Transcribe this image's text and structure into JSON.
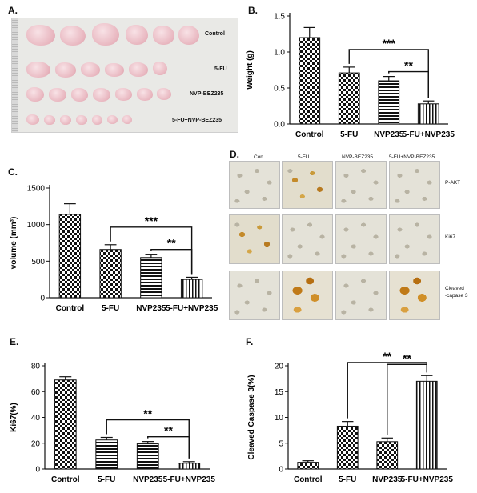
{
  "panel_letters": {
    "a": "A.",
    "b": "B.",
    "c": "C.",
    "d": "D.",
    "e": "E.",
    "f": "F."
  },
  "photo_labels": [
    "Control",
    "5-FU",
    "NVP-BEZ235",
    "5-FU+NVP-BEZ235"
  ],
  "histology": {
    "columns": [
      "Con",
      "5-FU",
      "NVP-BEZ235",
      "5-FU+NVP-BEZ235"
    ],
    "rows": [
      "P-AKT",
      "Ki67",
      "Cleaved",
      "-capase 3"
    ]
  },
  "chart_data": [
    {
      "id": "B",
      "type": "bar",
      "categories": [
        "Control",
        "5-FU",
        "NVP235",
        "5-FU+NVP235"
      ],
      "values": [
        1.2,
        0.71,
        0.6,
        0.28
      ],
      "errors": [
        0.14,
        0.08,
        0.06,
        0.04
      ],
      "ylabel": "Weight (g)",
      "ylim": [
        0,
        1.5
      ],
      "yticks": [
        "0.0",
        "0.5",
        "1.0",
        "1.5"
      ],
      "tick_values": [
        0,
        0.5,
        1.0,
        1.5
      ],
      "patterns": [
        "check",
        "check",
        "hlines",
        "vlines"
      ],
      "significance": [
        {
          "from": 1,
          "to": 3,
          "label": "***"
        },
        {
          "from": 2,
          "to": 3,
          "label": "**"
        }
      ]
    },
    {
      "id": "C",
      "type": "bar",
      "categories": [
        "Control",
        "5-FU",
        "NVP235",
        "5-FU+NVP235"
      ],
      "values": [
        1140,
        660,
        550,
        250
      ],
      "errors": [
        145,
        65,
        45,
        30
      ],
      "ylabel": "volume (mm³)",
      "ylim": [
        0,
        1500
      ],
      "yticks": [
        "0",
        "500",
        "1000",
        "1500"
      ],
      "tick_values": [
        0,
        500,
        1000,
        1500
      ],
      "patterns": [
        "check",
        "check",
        "hlines",
        "vlines"
      ],
      "significance": [
        {
          "from": 1,
          "to": 3,
          "label": "***"
        },
        {
          "from": 2,
          "to": 3,
          "label": "**"
        }
      ]
    },
    {
      "id": "E",
      "type": "bar",
      "categories": [
        "Control",
        "5-FU",
        "NVP235",
        "5-FU+NVP235"
      ],
      "values": [
        69,
        22.5,
        19.5,
        4.5
      ],
      "errors": [
        2.5,
        2,
        1.8,
        1.2
      ],
      "ylabel": "Ki67(%)",
      "ylim": [
        0,
        80
      ],
      "yticks": [
        "0",
        "20",
        "40",
        "60",
        "80"
      ],
      "tick_values": [
        0,
        20,
        40,
        60,
        80
      ],
      "patterns": [
        "check",
        "hlines",
        "hlines",
        "vlines"
      ],
      "significance": [
        {
          "from": 1,
          "to": 3,
          "label": "**"
        },
        {
          "from": 2,
          "to": 3,
          "label": "**"
        }
      ]
    },
    {
      "id": "F",
      "type": "bar",
      "categories": [
        "Control",
        "5-FU",
        "NVP235",
        "5-FU+NVP235"
      ],
      "values": [
        1.3,
        8.3,
        5.3,
        17
      ],
      "errors": [
        0.3,
        0.9,
        0.7,
        1.1
      ],
      "ylabel": "Cleaved Caspase 3(%)",
      "ylim": [
        0,
        20
      ],
      "yticks": [
        "0",
        "5",
        "10",
        "15",
        "20"
      ],
      "tick_values": [
        0,
        5,
        10,
        15,
        20
      ],
      "patterns": [
        "check",
        "check",
        "check",
        "vlines"
      ],
      "significance": [
        {
          "from": 1,
          "to": 3,
          "label": "**"
        },
        {
          "from": 2,
          "to": 3,
          "label": "**"
        }
      ]
    }
  ]
}
